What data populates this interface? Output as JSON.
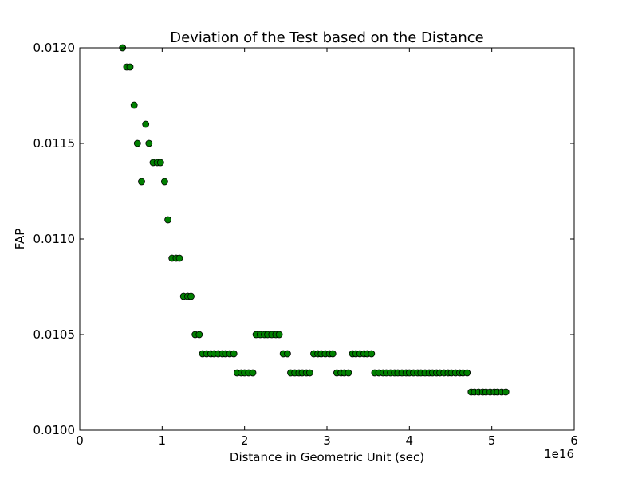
{
  "chart_data": {
    "type": "scatter",
    "title": "Deviation of the Test based on the Distance",
    "xlabel": "Distance in Geometric Unit (sec)",
    "ylabel": "FAP",
    "x_offset_label": "1e16",
    "xlim": [
      0,
      6
    ],
    "ylim": [
      0.01,
      0.012
    ],
    "x_ticks": [
      "0",
      "1",
      "2",
      "3",
      "4",
      "5",
      "6"
    ],
    "y_ticks": [
      "0.0100",
      "0.0105",
      "0.0110",
      "0.0115",
      "0.0120"
    ],
    "grid": false,
    "marker_color": "#008000",
    "marker_edge_color": "#000000",
    "points": [
      [
        0.52,
        0.012
      ],
      [
        0.57,
        0.0119
      ],
      [
        0.61,
        0.0119
      ],
      [
        0.66,
        0.0117
      ],
      [
        0.7,
        0.0115
      ],
      [
        0.75,
        0.0113
      ],
      [
        0.8,
        0.0116
      ],
      [
        0.84,
        0.0115
      ],
      [
        0.89,
        0.0114
      ],
      [
        0.94,
        0.0114
      ],
      [
        0.98,
        0.0114
      ],
      [
        1.03,
        0.0113
      ],
      [
        1.07,
        0.0111
      ],
      [
        1.12,
        0.0109
      ],
      [
        1.17,
        0.0109
      ],
      [
        1.21,
        0.0109
      ],
      [
        1.26,
        0.0107
      ],
      [
        1.31,
        0.0107
      ],
      [
        1.35,
        0.0107
      ],
      [
        1.4,
        0.0105
      ],
      [
        1.45,
        0.0105
      ],
      [
        1.49,
        0.0104
      ],
      [
        1.54,
        0.0104
      ],
      [
        1.59,
        0.0104
      ],
      [
        1.63,
        0.0104
      ],
      [
        1.68,
        0.0104
      ],
      [
        1.73,
        0.0104
      ],
      [
        1.77,
        0.0104
      ],
      [
        1.82,
        0.0104
      ],
      [
        1.87,
        0.0104
      ],
      [
        1.91,
        0.0103
      ],
      [
        1.96,
        0.0103
      ],
      [
        2.0,
        0.0103
      ],
      [
        2.05,
        0.0103
      ],
      [
        2.1,
        0.0103
      ],
      [
        2.14,
        0.0105
      ],
      [
        2.19,
        0.0105
      ],
      [
        2.24,
        0.0105
      ],
      [
        2.28,
        0.0105
      ],
      [
        2.33,
        0.0105
      ],
      [
        2.38,
        0.0105
      ],
      [
        2.42,
        0.0105
      ],
      [
        2.47,
        0.0104
      ],
      [
        2.52,
        0.0104
      ],
      [
        2.56,
        0.0103
      ],
      [
        2.61,
        0.0103
      ],
      [
        2.66,
        0.0103
      ],
      [
        2.7,
        0.0103
      ],
      [
        2.75,
        0.0103
      ],
      [
        2.79,
        0.0103
      ],
      [
        2.84,
        0.0104
      ],
      [
        2.89,
        0.0104
      ],
      [
        2.93,
        0.0104
      ],
      [
        2.98,
        0.0104
      ],
      [
        3.03,
        0.0104
      ],
      [
        3.07,
        0.0104
      ],
      [
        3.12,
        0.0103
      ],
      [
        3.17,
        0.0103
      ],
      [
        3.21,
        0.0103
      ],
      [
        3.26,
        0.0103
      ],
      [
        3.31,
        0.0104
      ],
      [
        3.35,
        0.0104
      ],
      [
        3.4,
        0.0104
      ],
      [
        3.45,
        0.0104
      ],
      [
        3.49,
        0.0104
      ],
      [
        3.54,
        0.0104
      ],
      [
        3.58,
        0.0103
      ],
      [
        3.63,
        0.0103
      ],
      [
        3.68,
        0.0103
      ],
      [
        3.72,
        0.0103
      ],
      [
        3.77,
        0.0103
      ],
      [
        3.82,
        0.0103
      ],
      [
        3.86,
        0.0103
      ],
      [
        3.91,
        0.0103
      ],
      [
        3.96,
        0.0103
      ],
      [
        4.0,
        0.0103
      ],
      [
        4.05,
        0.0103
      ],
      [
        4.1,
        0.0103
      ],
      [
        4.14,
        0.0103
      ],
      [
        4.19,
        0.0103
      ],
      [
        4.24,
        0.0103
      ],
      [
        4.28,
        0.0103
      ],
      [
        4.33,
        0.0103
      ],
      [
        4.37,
        0.0103
      ],
      [
        4.42,
        0.0103
      ],
      [
        4.47,
        0.0103
      ],
      [
        4.51,
        0.0103
      ],
      [
        4.56,
        0.0103
      ],
      [
        4.61,
        0.0103
      ],
      [
        4.65,
        0.0103
      ],
      [
        4.7,
        0.0103
      ],
      [
        4.75,
        0.0102
      ],
      [
        4.79,
        0.0102
      ],
      [
        4.84,
        0.0102
      ],
      [
        4.89,
        0.0102
      ],
      [
        4.93,
        0.0102
      ],
      [
        4.98,
        0.0102
      ],
      [
        5.03,
        0.0102
      ],
      [
        5.07,
        0.0102
      ],
      [
        5.12,
        0.0102
      ],
      [
        5.17,
        0.0102
      ]
    ]
  }
}
